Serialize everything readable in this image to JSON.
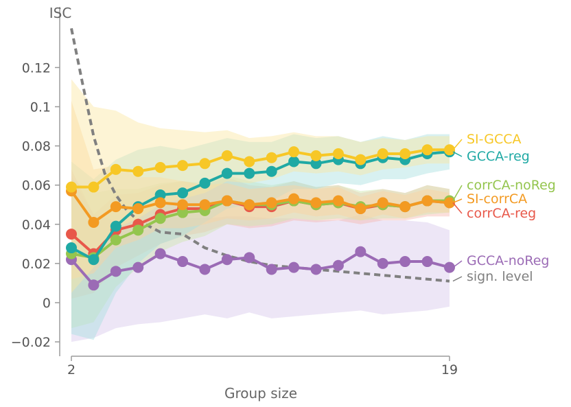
{
  "chart_data": {
    "type": "line",
    "title": "",
    "ylabel": "ISC",
    "xlabel": "Group size",
    "xlim": [
      2,
      19
    ],
    "ylim": [
      -0.02,
      0.14
    ],
    "xticks": [
      {
        "value": 2,
        "label": "2"
      },
      {
        "value": 19,
        "label": "19"
      }
    ],
    "yticks": [
      {
        "value": -0.02,
        "label": "−0.02"
      },
      {
        "value": 0,
        "label": "0"
      },
      {
        "value": 0.02,
        "label": "0.02"
      },
      {
        "value": 0.04,
        "label": "0.04"
      },
      {
        "value": 0.06,
        "label": "0.06"
      },
      {
        "value": 0.08,
        "label": "0.08"
      },
      {
        "value": 0.1,
        "label": "0.1"
      },
      {
        "value": 0.12,
        "label": "0.12"
      }
    ],
    "x": [
      2,
      3,
      4,
      5,
      6,
      7,
      8,
      9,
      10,
      11,
      12,
      13,
      14,
      15,
      16,
      17,
      18,
      19
    ],
    "series": [
      {
        "name": "GCCA-noReg",
        "color": "#9b6bb5",
        "band_color": "#d7c7ea",
        "values": [
          0.022,
          0.009,
          0.016,
          0.018,
          0.025,
          0.021,
          0.017,
          0.022,
          0.023,
          0.017,
          0.018,
          0.017,
          0.019,
          0.026,
          0.02,
          0.021,
          0.021,
          0.018
        ],
        "lower": [
          -0.02,
          -0.018,
          -0.013,
          -0.011,
          -0.01,
          -0.008,
          -0.006,
          -0.008,
          -0.005,
          -0.008,
          -0.007,
          -0.006,
          -0.005,
          -0.004,
          -0.006,
          -0.005,
          -0.004,
          -0.002
        ],
        "upper": [
          0.065,
          0.045,
          0.042,
          0.042,
          0.045,
          0.043,
          0.043,
          0.044,
          0.044,
          0.043,
          0.043,
          0.042,
          0.042,
          0.045,
          0.042,
          0.042,
          0.041,
          0.037
        ]
      },
      {
        "name": "corrCA-reg",
        "color": "#e8584a",
        "band_color": "#f6b9b0",
        "values": [
          0.035,
          0.025,
          0.037,
          0.04,
          0.045,
          0.048,
          0.048,
          0.052,
          0.049,
          0.049,
          0.052,
          0.05,
          0.051,
          0.048,
          0.05,
          0.049,
          0.052,
          0.051
        ],
        "lower": [
          0.002,
          0.005,
          0.018,
          0.024,
          0.03,
          0.034,
          0.036,
          0.04,
          0.038,
          0.039,
          0.042,
          0.041,
          0.042,
          0.04,
          0.042,
          0.042,
          0.044,
          0.044
        ],
        "upper": [
          0.068,
          0.045,
          0.055,
          0.056,
          0.06,
          0.062,
          0.06,
          0.064,
          0.06,
          0.059,
          0.062,
          0.059,
          0.06,
          0.056,
          0.058,
          0.056,
          0.06,
          0.058
        ]
      },
      {
        "name": "corrCA-noReg",
        "color": "#94c54e",
        "band_color": "#cfe6ad",
        "values": [
          0.025,
          0.023,
          0.032,
          0.037,
          0.043,
          0.046,
          0.047,
          0.052,
          0.05,
          0.05,
          0.052,
          0.05,
          0.051,
          0.049,
          0.05,
          0.049,
          0.052,
          0.052
        ],
        "lower": [
          -0.013,
          -0.01,
          0.008,
          0.018,
          0.026,
          0.031,
          0.034,
          0.04,
          0.039,
          0.04,
          0.043,
          0.042,
          0.043,
          0.042,
          0.043,
          0.043,
          0.045,
          0.046
        ],
        "upper": [
          0.063,
          0.056,
          0.058,
          0.058,
          0.061,
          0.062,
          0.061,
          0.065,
          0.062,
          0.06,
          0.062,
          0.059,
          0.06,
          0.057,
          0.058,
          0.056,
          0.06,
          0.058
        ]
      },
      {
        "name": "GCCA-reg",
        "color": "#1fa9a4",
        "band_color": "#a8dfe0",
        "values": [
          0.028,
          0.022,
          0.039,
          0.049,
          0.055,
          0.056,
          0.061,
          0.066,
          0.066,
          0.067,
          0.072,
          0.071,
          0.073,
          0.071,
          0.074,
          0.073,
          0.076,
          0.077
        ],
        "lower": [
          -0.016,
          -0.019,
          0.005,
          0.02,
          0.03,
          0.034,
          0.041,
          0.048,
          0.05,
          0.052,
          0.058,
          0.058,
          0.061,
          0.06,
          0.063,
          0.063,
          0.066,
          0.068
        ],
        "upper": [
          0.072,
          0.063,
          0.073,
          0.078,
          0.08,
          0.078,
          0.081,
          0.084,
          0.082,
          0.082,
          0.086,
          0.084,
          0.085,
          0.082,
          0.085,
          0.083,
          0.086,
          0.086
        ]
      },
      {
        "name": "SI-corrCA",
        "color": "#f39a22",
        "band_color": "#fad2a0",
        "values": [
          0.057,
          0.041,
          0.049,
          0.048,
          0.051,
          0.05,
          0.05,
          0.052,
          0.05,
          0.051,
          0.053,
          0.051,
          0.052,
          0.048,
          0.051,
          0.049,
          0.052,
          0.051
        ],
        "lower": [
          0.012,
          0.015,
          0.028,
          0.032,
          0.038,
          0.038,
          0.04,
          0.043,
          0.042,
          0.043,
          0.046,
          0.044,
          0.045,
          0.042,
          0.045,
          0.043,
          0.046,
          0.046
        ],
        "upper": [
          0.103,
          0.068,
          0.07,
          0.064,
          0.064,
          0.062,
          0.06,
          0.061,
          0.058,
          0.059,
          0.06,
          0.058,
          0.059,
          0.054,
          0.057,
          0.055,
          0.058,
          0.056
        ]
      },
      {
        "name": "SI-GCCA",
        "color": "#f7c726",
        "band_color": "#fbe6a1",
        "values": [
          0.059,
          0.059,
          0.068,
          0.067,
          0.069,
          0.07,
          0.071,
          0.075,
          0.072,
          0.074,
          0.077,
          0.075,
          0.076,
          0.073,
          0.076,
          0.076,
          0.078,
          0.078
        ],
        "lower": [
          0.005,
          0.018,
          0.038,
          0.043,
          0.05,
          0.053,
          0.056,
          0.062,
          0.061,
          0.063,
          0.067,
          0.066,
          0.067,
          0.065,
          0.068,
          0.069,
          0.071,
          0.071
        ],
        "upper": [
          0.114,
          0.1,
          0.098,
          0.092,
          0.089,
          0.088,
          0.087,
          0.088,
          0.084,
          0.085,
          0.087,
          0.085,
          0.085,
          0.082,
          0.084,
          0.083,
          0.085,
          0.085
        ]
      }
    ],
    "significance_level": {
      "name": "sign. level",
      "color": "#808080",
      "x": [
        2,
        2.5,
        3,
        3.5,
        4,
        4.5,
        5,
        6,
        7,
        8,
        9,
        10,
        11,
        12,
        13,
        14,
        15,
        16,
        17,
        18,
        19
      ],
      "values": [
        0.14,
        0.112,
        0.085,
        0.066,
        0.055,
        0.047,
        0.042,
        0.036,
        0.035,
        0.028,
        0.024,
        0.021,
        0.019,
        0.018,
        0.017,
        0.016,
        0.015,
        0.014,
        0.013,
        0.012,
        0.011
      ]
    },
    "legend": [
      {
        "label": "SI-GCCA",
        "color": "#f7c726",
        "series_value": 0.078
      },
      {
        "label": "GCCA-reg",
        "color": "#1fa9a4",
        "series_value": 0.077
      },
      {
        "label": "corrCA-noReg",
        "color": "#94c54e",
        "series_value": 0.052
      },
      {
        "label": "SI-corrCA",
        "color": "#f39a22",
        "series_value": 0.051
      },
      {
        "label": "corrCA-reg",
        "color": "#e8584a",
        "series_value": 0.051
      },
      {
        "label": "GCCA-noReg",
        "color": "#9b6bb5",
        "series_value": 0.018
      },
      {
        "label": "sign. level",
        "color": "#808080",
        "series_value": 0.011
      }
    ]
  }
}
